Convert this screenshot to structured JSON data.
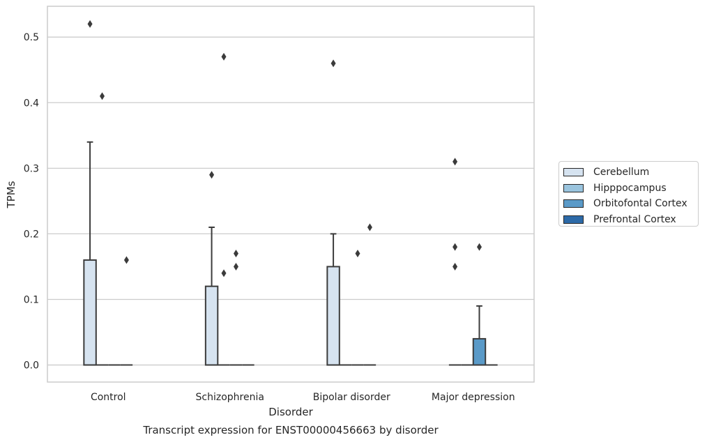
{
  "chart_data": {
    "type": "box",
    "title": "Transcript expression for ENST00000456663 by disorder",
    "xlabel": "Disorder",
    "ylabel": "TPMs",
    "ylim": [
      -0.026,
      0.547
    ],
    "yticks": [
      "0.0",
      "0.1",
      "0.2",
      "0.3",
      "0.4",
      "0.5"
    ],
    "ytick_values": [
      0.0,
      0.1,
      0.2,
      0.3,
      0.4,
      0.5
    ],
    "grid": true,
    "legend_position": "right",
    "categories": [
      "Control",
      "Schizophrenia",
      "Bipolar disorder",
      "Major depression"
    ],
    "series": [
      {
        "name": "Cerebellum",
        "color": "#d6e3f0",
        "boxes": [
          {
            "category": "Control",
            "q1": 0.0,
            "median": 0.0,
            "q3": 0.16,
            "whisker_low": 0.0,
            "whisker_high": 0.34,
            "outliers": [
              0.52
            ]
          },
          {
            "category": "Schizophrenia",
            "q1": 0.0,
            "median": 0.0,
            "q3": 0.12,
            "whisker_low": 0.0,
            "whisker_high": 0.21,
            "outliers": [
              0.29
            ]
          },
          {
            "category": "Bipolar disorder",
            "q1": 0.0,
            "median": 0.0,
            "q3": 0.15,
            "whisker_low": 0.0,
            "whisker_high": 0.2,
            "outliers": [
              0.46
            ]
          },
          {
            "category": "Major depression",
            "q1": 0.0,
            "median": 0.0,
            "q3": 0.0,
            "whisker_low": 0.0,
            "whisker_high": 0.0,
            "outliers": [
              0.31,
              0.18,
              0.15
            ]
          }
        ]
      },
      {
        "name": "Hipppocampus",
        "color": "#9ac4de",
        "boxes": [
          {
            "category": "Control",
            "q1": 0.0,
            "median": 0.0,
            "q3": 0.0,
            "whisker_low": 0.0,
            "whisker_high": 0.0,
            "outliers": [
              0.41
            ]
          },
          {
            "category": "Schizophrenia",
            "q1": 0.0,
            "median": 0.0,
            "q3": 0.0,
            "whisker_low": 0.0,
            "whisker_high": 0.0,
            "outliers": [
              0.47,
              0.14
            ]
          },
          {
            "category": "Bipolar disorder",
            "q1": 0.0,
            "median": 0.0,
            "q3": 0.0,
            "whisker_low": 0.0,
            "whisker_high": 0.0,
            "outliers": []
          },
          {
            "category": "Major depression",
            "q1": 0.0,
            "median": 0.0,
            "q3": 0.0,
            "whisker_low": 0.0,
            "whisker_high": 0.0,
            "outliers": []
          }
        ]
      },
      {
        "name": "Orbitofontal Cortex",
        "color": "#5a9ac8",
        "boxes": [
          {
            "category": "Control",
            "q1": 0.0,
            "median": 0.0,
            "q3": 0.0,
            "whisker_low": 0.0,
            "whisker_high": 0.0,
            "outliers": []
          },
          {
            "category": "Schizophrenia",
            "q1": 0.0,
            "median": 0.0,
            "q3": 0.0,
            "whisker_low": 0.0,
            "whisker_high": 0.0,
            "outliers": [
              0.17,
              0.15
            ]
          },
          {
            "category": "Bipolar disorder",
            "q1": 0.0,
            "median": 0.0,
            "q3": 0.0,
            "whisker_low": 0.0,
            "whisker_high": 0.0,
            "outliers": [
              0.17
            ]
          },
          {
            "category": "Major depression",
            "q1": 0.0,
            "median": 0.0,
            "q3": 0.04,
            "whisker_low": 0.0,
            "whisker_high": 0.09,
            "outliers": [
              0.18
            ]
          }
        ]
      },
      {
        "name": "Prefrontal Cortex",
        "color": "#2d6aa8",
        "boxes": [
          {
            "category": "Control",
            "q1": 0.0,
            "median": 0.0,
            "q3": 0.0,
            "whisker_low": 0.0,
            "whisker_high": 0.0,
            "outliers": [
              0.16
            ]
          },
          {
            "category": "Schizophrenia",
            "q1": 0.0,
            "median": 0.0,
            "q3": 0.0,
            "whisker_low": 0.0,
            "whisker_high": 0.0,
            "outliers": []
          },
          {
            "category": "Bipolar disorder",
            "q1": 0.0,
            "median": 0.0,
            "q3": 0.0,
            "whisker_low": 0.0,
            "whisker_high": 0.0,
            "outliers": [
              0.21
            ]
          },
          {
            "category": "Major depression",
            "q1": 0.0,
            "median": 0.0,
            "q3": 0.0,
            "whisker_low": 0.0,
            "whisker_high": 0.0,
            "outliers": []
          }
        ]
      }
    ]
  }
}
